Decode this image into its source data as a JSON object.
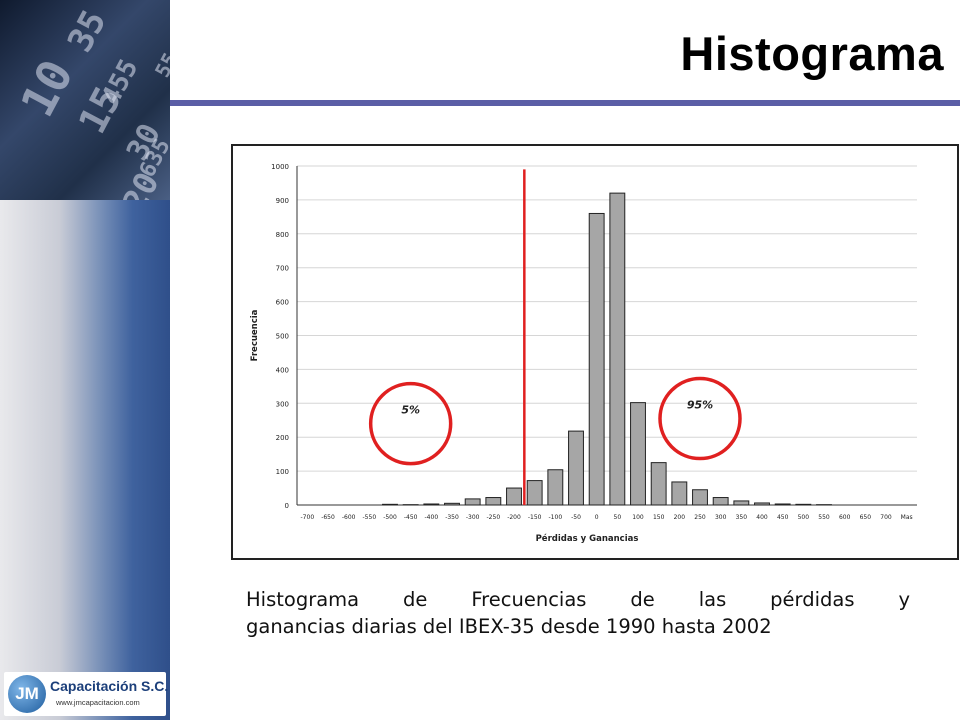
{
  "slide": {
    "title": "Histograma",
    "caption_line1": "Histograma de Frecuencias de las pérdidas y",
    "caption_line2": "ganancias diarias del IBEX-35 desde 1990 hasta 2002"
  },
  "logo": {
    "badge": "JM",
    "name": "Capacitación S.C.",
    "url": "www.jmcapacitacion.com"
  },
  "sidebar_photo_numbers": [
    "10",
    "35",
    "15",
    "455",
    "30",
    "20",
    "635",
    "55"
  ],
  "colors": {
    "title_rule": "#5b5ea6",
    "bar_fill": "#a6a6a6",
    "bar_stroke": "#222222",
    "var_line": "#e02020",
    "circle": "#e02020"
  },
  "chart_data": {
    "type": "bar",
    "title": "",
    "xlabel": "Pérdidas y Ganancias",
    "ylabel": "Frecuencia",
    "ylim": [
      0,
      1000
    ],
    "yticks": [
      0,
      100,
      200,
      300,
      400,
      500,
      600,
      700,
      800,
      900,
      1000
    ],
    "grid": "horizontal",
    "categories": [
      "-700",
      "-650",
      "-600",
      "-550",
      "-500",
      "-450",
      "-400",
      "-350",
      "-300",
      "-250",
      "-200",
      "-150",
      "-100",
      "-50",
      "0",
      "50",
      "100",
      "150",
      "200",
      "250",
      "300",
      "350",
      "400",
      "450",
      "500",
      "550",
      "600",
      "650",
      "700",
      "Mas"
    ],
    "values": [
      0,
      0,
      0,
      0,
      2,
      1,
      3,
      5,
      18,
      22,
      50,
      72,
      104,
      218,
      860,
      920,
      302,
      125,
      68,
      45,
      22,
      12,
      6,
      3,
      2,
      1,
      0,
      0,
      0,
      0
    ],
    "var_line_after_category": "-200",
    "annotations": [
      {
        "label": "5%",
        "near_category": "-450",
        "value": 240
      },
      {
        "label": "95%",
        "near_category": "250",
        "value": 255
      }
    ]
  }
}
